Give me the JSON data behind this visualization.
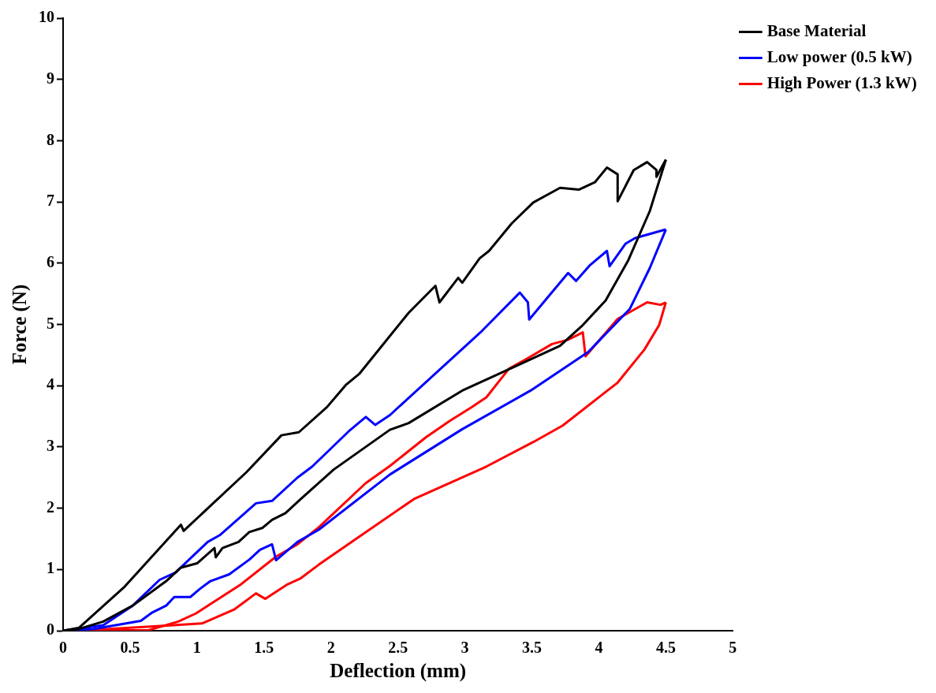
{
  "chart_data": {
    "type": "line",
    "xlabel": "Deflection (mm)",
    "ylabel": "Force (N)",
    "xlim": [
      0,
      5
    ],
    "ylim": [
      0,
      10
    ],
    "xticks": [
      0,
      0.5,
      1,
      1.5,
      2,
      2.5,
      3,
      3.5,
      4,
      4.5,
      5
    ],
    "yticks": [
      0,
      1,
      2,
      3,
      4,
      5,
      6,
      7,
      8,
      9,
      10
    ],
    "grid": false,
    "legend": "top right",
    "marker": "none",
    "line_style": "solid",
    "series": [
      {
        "name": "Base Material",
        "color": "#000000",
        "x": [
          0,
          0.12,
          0.46,
          0.88,
          0.9,
          1.37,
          1.63,
          1.76,
          1.97,
          2.11,
          2.21,
          2.38,
          2.58,
          2.78,
          2.81,
          2.95,
          2.98,
          3.11,
          3.18,
          3.35,
          3.51,
          3.71,
          3.85,
          3.97,
          4.06,
          4.14,
          4.14,
          4.26,
          4.36,
          4.43,
          4.43,
          4.5
        ],
        "values": [
          0,
          0.05,
          0.72,
          1.73,
          1.63,
          2.59,
          3.19,
          3.24,
          3.65,
          4.01,
          4.19,
          4.65,
          5.19,
          5.63,
          5.36,
          5.76,
          5.68,
          6.08,
          6.2,
          6.65,
          6.99,
          7.23,
          7.2,
          7.32,
          7.56,
          7.45,
          7.01,
          7.52,
          7.65,
          7.52,
          7.41,
          7.69
        ]
      },
      {
        "color": "#000000",
        "x": [
          0,
          0.12,
          0.3,
          0.52,
          0.77,
          0.88,
          1,
          1.13,
          1.14,
          1.19,
          1.31,
          1.39,
          1.49,
          1.56,
          1.66,
          1.77,
          2.02,
          2.44,
          2.58,
          2.98,
          3.38,
          3.71,
          3.88,
          4.05,
          4.22,
          4.38,
          4.5
        ],
        "values": [
          0,
          0.03,
          0.15,
          0.41,
          0.81,
          1.03,
          1.1,
          1.35,
          1.2,
          1.35,
          1.45,
          1.61,
          1.68,
          1.81,
          1.92,
          2.14,
          2.63,
          3.28,
          3.39,
          3.92,
          4.32,
          4.65,
          4.99,
          5.39,
          6.05,
          6.85,
          7.69
        ]
      },
      {
        "name": "Low power (0.5 kW)",
        "color": "#0000ff",
        "x": [
          0,
          0.3,
          0.52,
          0.72,
          0.84,
          1.08,
          1.17,
          1.44,
          1.56,
          1.75,
          1.86,
          2.13,
          2.26,
          2.33,
          2.44,
          3.13,
          3.41,
          3.47,
          3.48,
          3.77,
          3.83,
          3.93,
          4.06,
          4.08,
          4.2,
          4.27,
          4.5
        ],
        "values": [
          0,
          0.09,
          0.41,
          0.83,
          0.95,
          1.45,
          1.56,
          2.08,
          2.12,
          2.5,
          2.68,
          3.25,
          3.49,
          3.36,
          3.52,
          4.9,
          5.52,
          5.36,
          5.08,
          5.84,
          5.71,
          5.96,
          6.2,
          5.95,
          6.32,
          6.41,
          6.55
        ]
      },
      {
        "color": "#0000ff",
        "x": [
          0,
          0.23,
          0.58,
          0.66,
          0.77,
          0.83,
          0.95,
          1.02,
          1.1,
          1.24,
          1.39,
          1.47,
          1.56,
          1.59,
          1.75,
          1.91,
          2.44,
          2.98,
          3.49,
          3.92,
          4.23,
          4.38,
          4.5
        ],
        "values": [
          0,
          0.03,
          0.16,
          0.29,
          0.41,
          0.55,
          0.55,
          0.68,
          0.81,
          0.92,
          1.16,
          1.32,
          1.41,
          1.15,
          1.45,
          1.65,
          2.55,
          3.29,
          3.92,
          4.55,
          5.25,
          5.92,
          6.55
        ]
      },
      {
        "name": "High Power (1.3 kW)",
        "color": "#ff0000",
        "x": [
          0,
          0.64,
          0.86,
          0.99,
          1.33,
          1.59,
          1.75,
          1.91,
          2.26,
          2.44,
          2.71,
          2.89,
          3.05,
          3.16,
          3.33,
          3.47,
          3.65,
          3.77,
          3.88,
          3.9,
          4.14,
          4.36,
          4.46,
          4.5
        ],
        "values": [
          0,
          0.01,
          0.15,
          0.28,
          0.76,
          1.21,
          1.41,
          1.69,
          2.41,
          2.69,
          3.16,
          3.43,
          3.65,
          3.81,
          4.28,
          4.45,
          4.68,
          4.75,
          4.87,
          4.48,
          5.09,
          5.36,
          5.32,
          5.36
        ]
      },
      {
        "color": "#ff0000",
        "x": [
          0,
          0.12,
          0.75,
          1.04,
          1.28,
          1.44,
          1.51,
          1.67,
          1.77,
          1.91,
          2.2,
          2.62,
          3.16,
          3.51,
          3.73,
          4.14,
          4.34,
          4.45,
          4.5
        ],
        "values": [
          0,
          0,
          0.08,
          0.12,
          0.35,
          0.61,
          0.52,
          0.75,
          0.85,
          1.08,
          1.52,
          2.15,
          2.68,
          3.08,
          3.35,
          4.05,
          4.59,
          4.99,
          5.36
        ]
      }
    ]
  }
}
